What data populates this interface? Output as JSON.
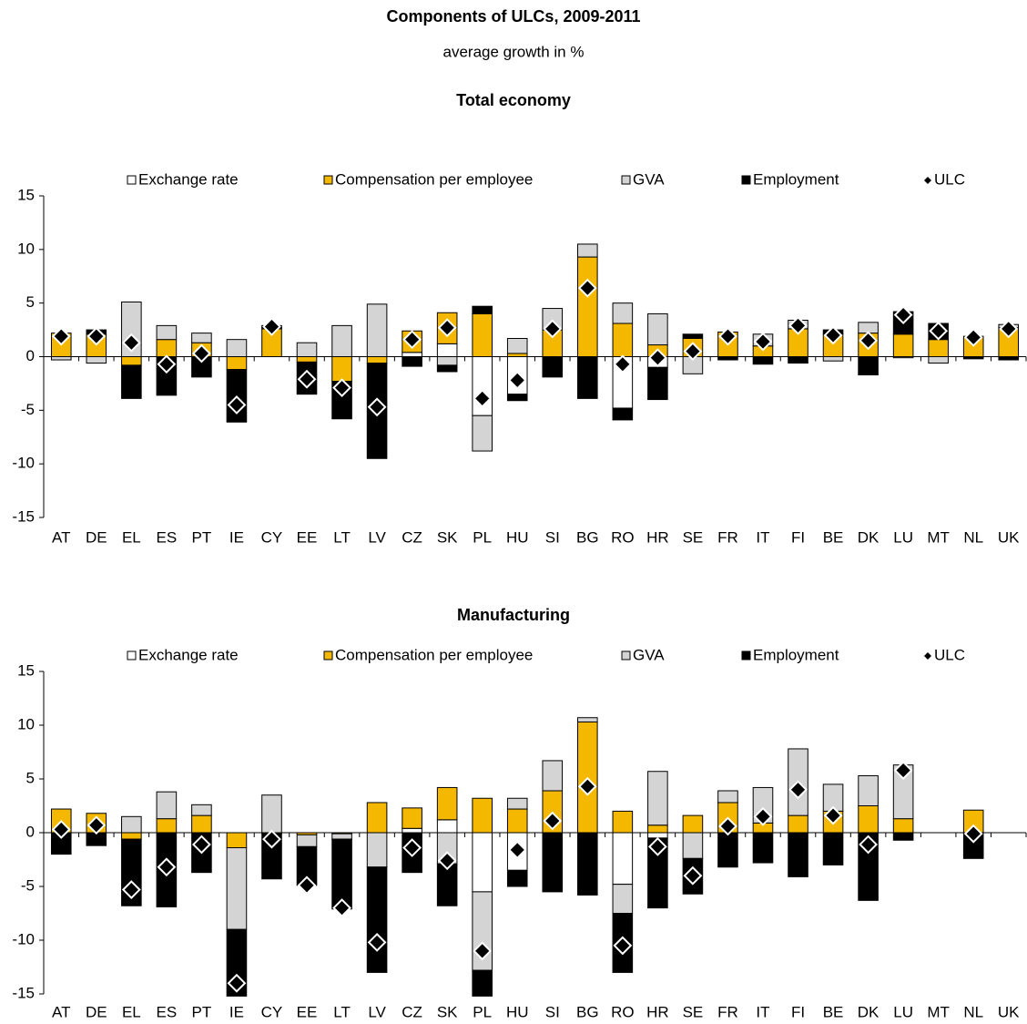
{
  "title": "Components of ULCs, 2009-2011",
  "subtitle": "average growth in %",
  "chart_data": [
    {
      "type": "bar",
      "stacked": true,
      "title": "Total economy",
      "categories": [
        "AT",
        "DE",
        "EL",
        "ES",
        "PT",
        "IE",
        "CY",
        "EE",
        "LT",
        "LV",
        "CZ",
        "SK",
        "PL",
        "HU",
        "SI",
        "BG",
        "RO",
        "HR",
        "SE",
        "FR",
        "IT",
        "FI",
        "BE",
        "DK",
        "LU",
        "MT",
        "NL",
        "UK"
      ],
      "ylim": [
        -15,
        15
      ],
      "yticks": [
        -15,
        -10,
        -5,
        0,
        5,
        10,
        15
      ],
      "series": [
        {
          "name": "Exchange rate",
          "color": "#ffffff",
          "values": [
            0,
            0,
            0,
            0,
            0,
            0,
            0,
            0,
            0,
            0,
            0.4,
            1.2,
            -5.5,
            -3.5,
            0,
            0,
            -4.8,
            -1.0,
            0,
            0,
            0,
            0,
            0,
            0,
            0,
            0,
            0,
            0
          ]
        },
        {
          "name": "Compensation per employee",
          "color": "#f5b800",
          "values": [
            2.2,
            2.1,
            -0.8,
            1.6,
            1.3,
            -1.2,
            2.6,
            -0.5,
            -2.3,
            -0.6,
            2.0,
            2.9,
            4.0,
            0.3,
            2.5,
            9.3,
            3.1,
            1.1,
            1.7,
            2.3,
            1.0,
            2.6,
            2.1,
            2.2,
            2.1,
            1.6,
            1.9,
            2.7
          ]
        },
        {
          "name": "GVA",
          "color": "#d4d4d4",
          "values": [
            -0.3,
            -0.6,
            5.1,
            1.3,
            0.9,
            1.6,
            0.1,
            1.3,
            2.9,
            4.9,
            0,
            -0.8,
            -3.3,
            1.4,
            2.0,
            1.2,
            1.9,
            2.9,
            -1.6,
            0,
            1.1,
            0.8,
            -0.4,
            1.0,
            -0.1,
            -0.6,
            0,
            0.3
          ]
        },
        {
          "name": "Employment",
          "color": "#000000",
          "values": [
            0,
            0.4,
            -3.1,
            -3.6,
            -1.9,
            -4.9,
            0.2,
            -3.0,
            -3.5,
            -8.9,
            -0.9,
            -0.6,
            0.7,
            -0.6,
            -1.9,
            -3.9,
            -1.1,
            -3.0,
            0.4,
            -0.3,
            -0.7,
            -0.6,
            0.4,
            -1.7,
            2.1,
            1.5,
            -0.2,
            -0.3
          ]
        },
        {
          "name": "ULC",
          "type": "marker",
          "color": "#000000",
          "values": [
            1.9,
            1.9,
            1.3,
            -0.7,
            0.3,
            -4.5,
            2.8,
            -2.1,
            -2.9,
            -4.7,
            1.6,
            2.7,
            -3.9,
            -2.2,
            2.6,
            6.4,
            -0.7,
            -0.1,
            0.5,
            1.9,
            1.4,
            2.9,
            2.0,
            1.5,
            3.9,
            2.4,
            1.8,
            2.6
          ]
        }
      ]
    },
    {
      "type": "bar",
      "stacked": true,
      "title": "Manufacturing",
      "categories": [
        "AT",
        "DE",
        "EL",
        "ES",
        "PT",
        "IE",
        "CY",
        "EE",
        "LT",
        "LV",
        "CZ",
        "SK",
        "PL",
        "HU",
        "SI",
        "BG",
        "RO",
        "HR",
        "SE",
        "FR",
        "IT",
        "FI",
        "BE",
        "DK",
        "LU",
        "MT",
        "NL",
        "UK"
      ],
      "ylim": [
        -15,
        15
      ],
      "yticks": [
        -15,
        -10,
        -5,
        0,
        5,
        10,
        15
      ],
      "series": [
        {
          "name": "Exchange rate",
          "color": "#ffffff",
          "values": [
            0,
            0,
            0,
            0,
            0,
            0,
            0,
            0,
            0,
            0,
            0.4,
            1.2,
            -5.5,
            -3.5,
            0,
            0,
            -4.8,
            -0.5,
            0,
            0,
            0,
            0,
            0,
            0,
            0,
            null,
            0,
            null
          ]
        },
        {
          "name": "Compensation per employee",
          "color": "#f5b800",
          "values": [
            2.2,
            1.8,
            -0.6,
            1.3,
            1.6,
            -1.4,
            -0.1,
            -0.2,
            -0.1,
            2.8,
            1.9,
            3.0,
            3.2,
            2.2,
            3.9,
            10.3,
            2.0,
            0.7,
            1.6,
            2.8,
            0.9,
            1.6,
            2.0,
            2.5,
            1.3,
            null,
            2.1,
            null
          ]
        },
        {
          "name": "GVA",
          "color": "#d4d4d4",
          "values": [
            0,
            0,
            1.5,
            2.5,
            1.0,
            -7.6,
            3.5,
            -1.1,
            -0.5,
            -3.2,
            0,
            -2.9,
            -7.3,
            1.0,
            2.8,
            0.4,
            -2.7,
            5.0,
            -2.4,
            1.1,
            3.3,
            6.2,
            2.5,
            2.8,
            5.0,
            null,
            0,
            null
          ]
        },
        {
          "name": "Employment",
          "color": "#000000",
          "values": [
            -2.0,
            -1.2,
            -6.2,
            -6.9,
            -3.7,
            -6.2,
            -4.2,
            -3.6,
            -6.5,
            -9.8,
            -3.7,
            -3.9,
            -2.4,
            -1.5,
            -5.5,
            -5.8,
            -5.5,
            -6.5,
            -3.3,
            -3.2,
            -2.8,
            -4.1,
            -3.0,
            -6.3,
            -0.7,
            null,
            -2.4,
            null
          ]
        },
        {
          "name": "ULC",
          "type": "marker",
          "color": "#000000",
          "values": [
            0.3,
            0.7,
            -5.3,
            -3.2,
            -1.1,
            -14.0,
            -0.6,
            -4.9,
            -7.0,
            -10.2,
            -1.4,
            -2.6,
            -11.0,
            -1.6,
            1.1,
            4.3,
            -10.5,
            -1.3,
            -4.0,
            0.6,
            1.5,
            4.0,
            1.6,
            -1.1,
            5.8,
            null,
            -0.1,
            null
          ]
        }
      ]
    }
  ]
}
